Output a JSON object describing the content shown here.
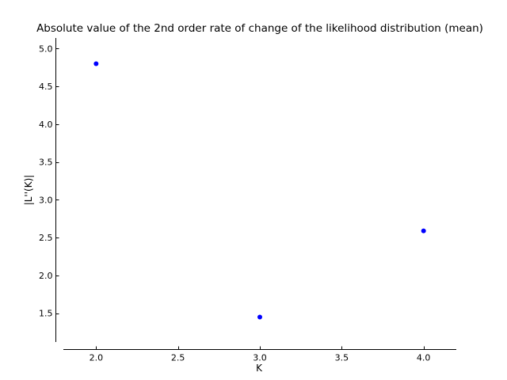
{
  "chart_data": {
    "type": "scatter",
    "title": "Absolute value of the 2nd order rate of change of the likelihood distribution (mean)",
    "xlabel": "K",
    "ylabel": "|L''(K)|",
    "xlim": [
      1.8,
      4.2
    ],
    "ylim": [
      1.12,
      5.14
    ],
    "xticks": [
      2.0,
      2.5,
      3.0,
      3.5,
      4.0
    ],
    "yticks": [
      1.5,
      2.0,
      2.5,
      3.0,
      3.5,
      4.0,
      4.5,
      5.0
    ],
    "xtick_labels": [
      "2.0",
      "2.5",
      "3.0",
      "3.5",
      "4.0"
    ],
    "ytick_labels": [
      "1.5",
      "2.0",
      "2.5",
      "3.0",
      "3.5",
      "4.0",
      "4.5",
      "5.0"
    ],
    "grid": false,
    "series": [
      {
        "color": "#0000ff",
        "marker": "circle",
        "points": [
          {
            "x": 2.0,
            "y": 4.8
          },
          {
            "x": 3.0,
            "y": 1.45
          },
          {
            "x": 4.0,
            "y": 2.59
          }
        ]
      }
    ]
  }
}
